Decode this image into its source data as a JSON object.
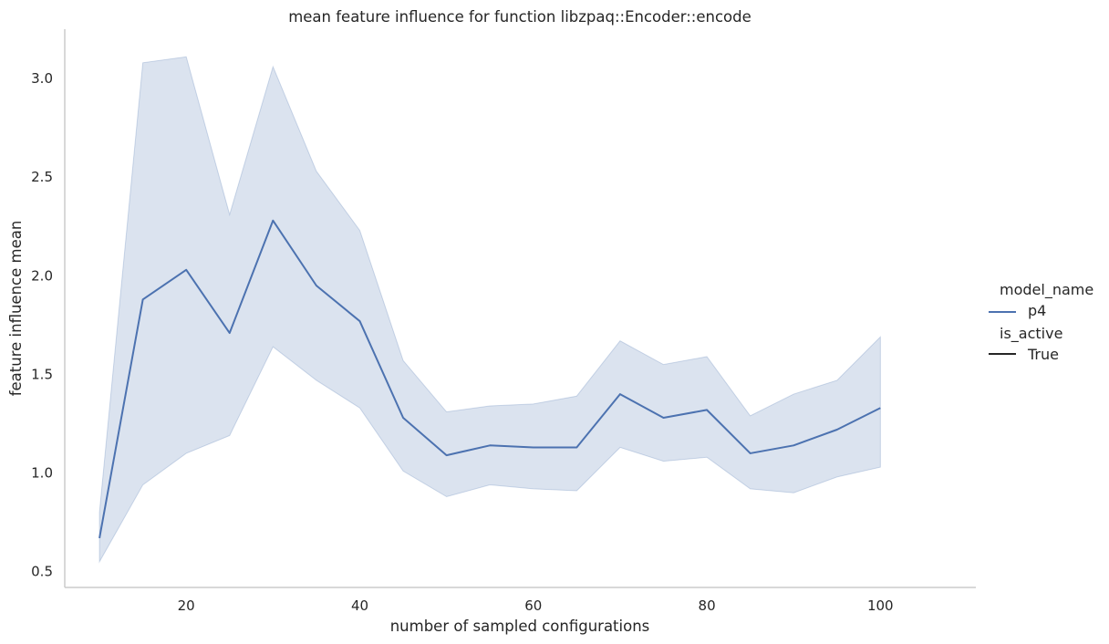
{
  "chart_data": {
    "type": "line",
    "title": "mean feature influence for function libzpaq::Encoder::encode",
    "xlabel": "number of sampled configurations",
    "ylabel": "feature influence mean",
    "xlim": [
      6,
      111
    ],
    "ylim": [
      0.42,
      3.25
    ],
    "xticks": [
      20,
      40,
      60,
      80,
      100
    ],
    "xtick_labels": [
      "20",
      "40",
      "60",
      "80",
      "100"
    ],
    "yticks": [
      0.5,
      1.0,
      1.5,
      2.0,
      2.5,
      3.0
    ],
    "ytick_labels": [
      "0.5",
      "1.0",
      "1.5",
      "2.0",
      "2.5",
      "3.0"
    ],
    "grid": false,
    "legend_position": "right",
    "legend": {
      "hue_title": "model_name",
      "hue_entries": [
        {
          "label": "p4",
          "color": "#4c72b0"
        }
      ],
      "style_title": "is_active",
      "style_entries": [
        {
          "label": "True",
          "color": "#262626"
        }
      ]
    },
    "x": [
      10,
      15,
      20,
      25,
      30,
      35,
      40,
      45,
      50,
      55,
      60,
      65,
      70,
      75,
      80,
      85,
      90,
      95,
      100
    ],
    "series": [
      {
        "name": "p4",
        "color": "#4c72b0",
        "band_color": "#4c72b0",
        "values": [
          0.67,
          1.88,
          2.03,
          1.71,
          2.28,
          1.95,
          1.77,
          1.28,
          1.09,
          1.14,
          1.13,
          1.13,
          1.4,
          1.28,
          1.32,
          1.1,
          1.14,
          1.22,
          1.33
        ],
        "ci_lower": [
          0.55,
          0.94,
          1.1,
          1.19,
          1.64,
          1.47,
          1.33,
          1.01,
          0.88,
          0.94,
          0.92,
          0.91,
          1.13,
          1.06,
          1.08,
          0.92,
          0.9,
          0.98,
          1.03
        ],
        "ci_upper": [
          0.8,
          3.08,
          3.11,
          2.31,
          3.06,
          2.53,
          2.23,
          1.57,
          1.31,
          1.34,
          1.35,
          1.39,
          1.67,
          1.55,
          1.59,
          1.29,
          1.4,
          1.47,
          1.69
        ]
      }
    ]
  }
}
